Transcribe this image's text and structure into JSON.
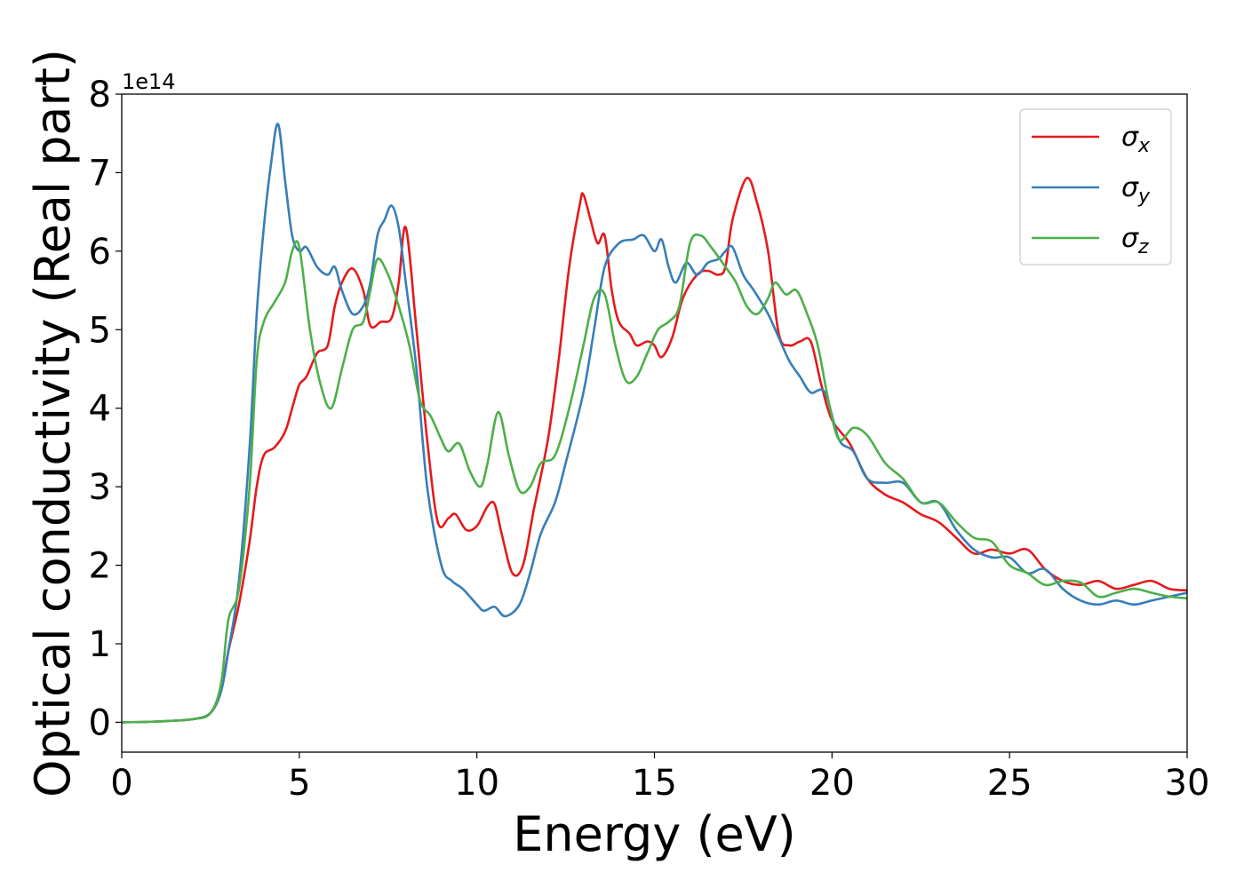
{
  "chart_data": {
    "type": "line",
    "xlabel": "Energy (eV)",
    "ylabel": "Optical conductivity (Real part)",
    "y_offset_label": "1e14",
    "xlim": [
      0,
      30
    ],
    "ylim": [
      -0.38,
      8.0
    ],
    "x_ticks": [
      0,
      5,
      10,
      15,
      20,
      25,
      30
    ],
    "y_ticks": [
      0,
      1,
      2,
      3,
      4,
      5,
      6,
      7,
      8
    ],
    "grid": false,
    "legend_position": "top-right",
    "series": [
      {
        "name": "σ",
        "subscript": "x",
        "color": "#e41a1c",
        "points": [
          [
            0,
            0
          ],
          [
            1,
            0.01
          ],
          [
            2,
            0.04
          ],
          [
            2.5,
            0.12
          ],
          [
            2.8,
            0.4
          ],
          [
            3.0,
            0.9
          ],
          [
            3.3,
            1.5
          ],
          [
            3.6,
            2.3
          ],
          [
            3.8,
            3.0
          ],
          [
            4.0,
            3.4
          ],
          [
            4.3,
            3.5
          ],
          [
            4.6,
            3.7
          ],
          [
            4.8,
            4.0
          ],
          [
            5.0,
            4.3
          ],
          [
            5.2,
            4.4
          ],
          [
            5.5,
            4.7
          ],
          [
            5.8,
            4.8
          ],
          [
            6.0,
            5.3
          ],
          [
            6.2,
            5.6
          ],
          [
            6.5,
            5.78
          ],
          [
            6.8,
            5.5
          ],
          [
            7.0,
            5.05
          ],
          [
            7.3,
            5.1
          ],
          [
            7.6,
            5.15
          ],
          [
            7.8,
            5.6
          ],
          [
            8.0,
            6.3
          ],
          [
            8.3,
            5.0
          ],
          [
            8.6,
            3.6
          ],
          [
            8.9,
            2.55
          ],
          [
            9.2,
            2.6
          ],
          [
            9.4,
            2.65
          ],
          [
            9.7,
            2.45
          ],
          [
            10.0,
            2.5
          ],
          [
            10.3,
            2.75
          ],
          [
            10.5,
            2.78
          ],
          [
            10.7,
            2.4
          ],
          [
            11.0,
            1.9
          ],
          [
            11.3,
            2.0
          ],
          [
            11.6,
            2.7
          ],
          [
            12.0,
            3.6
          ],
          [
            12.3,
            4.6
          ],
          [
            12.6,
            5.8
          ],
          [
            12.9,
            6.6
          ],
          [
            13.0,
            6.72
          ],
          [
            13.2,
            6.4
          ],
          [
            13.4,
            6.1
          ],
          [
            13.6,
            6.2
          ],
          [
            13.8,
            5.5
          ],
          [
            14.0,
            5.1
          ],
          [
            14.3,
            4.95
          ],
          [
            14.5,
            4.8
          ],
          [
            14.8,
            4.85
          ],
          [
            15.0,
            4.8
          ],
          [
            15.2,
            4.65
          ],
          [
            15.5,
            4.9
          ],
          [
            15.8,
            5.4
          ],
          [
            16.2,
            5.7
          ],
          [
            16.5,
            5.75
          ],
          [
            16.8,
            5.7
          ],
          [
            17.0,
            5.8
          ],
          [
            17.2,
            6.4
          ],
          [
            17.6,
            6.93
          ],
          [
            17.9,
            6.6
          ],
          [
            18.2,
            6.0
          ],
          [
            18.5,
            4.95
          ],
          [
            18.8,
            4.8
          ],
          [
            19.1,
            4.85
          ],
          [
            19.4,
            4.85
          ],
          [
            19.7,
            4.3
          ],
          [
            20.0,
            3.85
          ],
          [
            20.5,
            3.55
          ],
          [
            21.0,
            3.1
          ],
          [
            21.5,
            2.9
          ],
          [
            22.0,
            2.8
          ],
          [
            22.5,
            2.65
          ],
          [
            23.0,
            2.55
          ],
          [
            23.5,
            2.35
          ],
          [
            24.0,
            2.15
          ],
          [
            24.5,
            2.2
          ],
          [
            25.0,
            2.15
          ],
          [
            25.5,
            2.2
          ],
          [
            26.0,
            1.95
          ],
          [
            26.5,
            1.8
          ],
          [
            27.0,
            1.75
          ],
          [
            27.5,
            1.8
          ],
          [
            28.0,
            1.7
          ],
          [
            28.5,
            1.75
          ],
          [
            29.0,
            1.8
          ],
          [
            29.5,
            1.7
          ],
          [
            30.0,
            1.68
          ]
        ]
      },
      {
        "name": "σ",
        "subscript": "y",
        "color": "#377eb8",
        "points": [
          [
            0,
            0
          ],
          [
            1,
            0.01
          ],
          [
            2,
            0.04
          ],
          [
            2.5,
            0.12
          ],
          [
            2.8,
            0.4
          ],
          [
            3.0,
            0.9
          ],
          [
            3.3,
            1.8
          ],
          [
            3.6,
            3.5
          ],
          [
            3.8,
            5.2
          ],
          [
            4.0,
            6.3
          ],
          [
            4.2,
            7.1
          ],
          [
            4.4,
            7.62
          ],
          [
            4.6,
            6.9
          ],
          [
            4.8,
            6.2
          ],
          [
            5.0,
            6.0
          ],
          [
            5.2,
            6.05
          ],
          [
            5.5,
            5.8
          ],
          [
            5.8,
            5.7
          ],
          [
            6.0,
            5.8
          ],
          [
            6.2,
            5.5
          ],
          [
            6.5,
            5.2
          ],
          [
            6.8,
            5.3
          ],
          [
            7.0,
            5.6
          ],
          [
            7.2,
            6.2
          ],
          [
            7.4,
            6.4
          ],
          [
            7.6,
            6.58
          ],
          [
            7.8,
            6.3
          ],
          [
            8.0,
            5.6
          ],
          [
            8.3,
            4.5
          ],
          [
            8.6,
            3.0
          ],
          [
            9.0,
            2.0
          ],
          [
            9.3,
            1.8
          ],
          [
            9.6,
            1.7
          ],
          [
            10.0,
            1.5
          ],
          [
            10.2,
            1.42
          ],
          [
            10.5,
            1.47
          ],
          [
            10.8,
            1.35
          ],
          [
            11.2,
            1.5
          ],
          [
            11.5,
            1.9
          ],
          [
            11.8,
            2.4
          ],
          [
            12.2,
            2.8
          ],
          [
            12.5,
            3.3
          ],
          [
            13.0,
            4.2
          ],
          [
            13.3,
            5.0
          ],
          [
            13.6,
            5.8
          ],
          [
            14.0,
            6.1
          ],
          [
            14.4,
            6.15
          ],
          [
            14.7,
            6.2
          ],
          [
            15.0,
            6.0
          ],
          [
            15.2,
            6.15
          ],
          [
            15.4,
            5.8
          ],
          [
            15.6,
            5.6
          ],
          [
            15.9,
            5.85
          ],
          [
            16.2,
            5.7
          ],
          [
            16.5,
            5.85
          ],
          [
            16.8,
            5.9
          ],
          [
            17.0,
            6.0
          ],
          [
            17.2,
            6.05
          ],
          [
            17.5,
            5.7
          ],
          [
            17.8,
            5.5
          ],
          [
            18.2,
            5.2
          ],
          [
            18.5,
            4.9
          ],
          [
            18.8,
            4.6
          ],
          [
            19.1,
            4.4
          ],
          [
            19.4,
            4.2
          ],
          [
            19.8,
            4.2
          ],
          [
            20.2,
            3.6
          ],
          [
            20.6,
            3.45
          ],
          [
            21.0,
            3.1
          ],
          [
            21.5,
            3.05
          ],
          [
            22.0,
            3.05
          ],
          [
            22.5,
            2.8
          ],
          [
            23.0,
            2.8
          ],
          [
            23.5,
            2.45
          ],
          [
            24.0,
            2.2
          ],
          [
            24.5,
            2.1
          ],
          [
            25.0,
            2.1
          ],
          [
            25.5,
            1.9
          ],
          [
            26.0,
            1.95
          ],
          [
            26.5,
            1.7
          ],
          [
            27.0,
            1.55
          ],
          [
            27.5,
            1.5
          ],
          [
            28.0,
            1.55
          ],
          [
            28.5,
            1.5
          ],
          [
            29.0,
            1.55
          ],
          [
            29.5,
            1.6
          ],
          [
            30.0,
            1.65
          ]
        ]
      },
      {
        "name": "σ",
        "subscript": "z",
        "color": "#4daf4a",
        "points": [
          [
            0,
            0
          ],
          [
            1,
            0.01
          ],
          [
            2,
            0.04
          ],
          [
            2.5,
            0.12
          ],
          [
            2.8,
            0.5
          ],
          [
            3.0,
            1.3
          ],
          [
            3.3,
            1.7
          ],
          [
            3.6,
            3.0
          ],
          [
            3.8,
            4.6
          ],
          [
            4.0,
            5.1
          ],
          [
            4.3,
            5.35
          ],
          [
            4.6,
            5.6
          ],
          [
            4.8,
            6.0
          ],
          [
            5.0,
            6.05
          ],
          [
            5.3,
            5.0
          ],
          [
            5.6,
            4.3
          ],
          [
            5.9,
            4.0
          ],
          [
            6.2,
            4.5
          ],
          [
            6.5,
            5.0
          ],
          [
            6.8,
            5.1
          ],
          [
            7.0,
            5.5
          ],
          [
            7.2,
            5.9
          ],
          [
            7.5,
            5.7
          ],
          [
            7.8,
            5.3
          ],
          [
            8.1,
            4.8
          ],
          [
            8.4,
            4.1
          ],
          [
            8.7,
            3.9
          ],
          [
            9.0,
            3.6
          ],
          [
            9.2,
            3.45
          ],
          [
            9.5,
            3.55
          ],
          [
            9.8,
            3.2
          ],
          [
            10.1,
            3.0
          ],
          [
            10.3,
            3.3
          ],
          [
            10.6,
            3.95
          ],
          [
            10.9,
            3.4
          ],
          [
            11.2,
            2.95
          ],
          [
            11.5,
            3.0
          ],
          [
            11.8,
            3.3
          ],
          [
            12.2,
            3.4
          ],
          [
            12.6,
            4.0
          ],
          [
            13.0,
            4.8
          ],
          [
            13.3,
            5.4
          ],
          [
            13.6,
            5.45
          ],
          [
            13.9,
            4.8
          ],
          [
            14.2,
            4.35
          ],
          [
            14.5,
            4.4
          ],
          [
            14.8,
            4.7
          ],
          [
            15.1,
            5.0
          ],
          [
            15.4,
            5.1
          ],
          [
            15.7,
            5.3
          ],
          [
            16.0,
            6.1
          ],
          [
            16.3,
            6.2
          ],
          [
            16.6,
            6.05
          ],
          [
            17.0,
            5.8
          ],
          [
            17.3,
            5.6
          ],
          [
            17.6,
            5.3
          ],
          [
            17.9,
            5.2
          ],
          [
            18.2,
            5.4
          ],
          [
            18.4,
            5.6
          ],
          [
            18.7,
            5.45
          ],
          [
            19.0,
            5.5
          ],
          [
            19.3,
            5.2
          ],
          [
            19.6,
            4.8
          ],
          [
            19.9,
            4.1
          ],
          [
            20.2,
            3.6
          ],
          [
            20.6,
            3.75
          ],
          [
            21.0,
            3.65
          ],
          [
            21.5,
            3.3
          ],
          [
            22.0,
            3.1
          ],
          [
            22.5,
            2.8
          ],
          [
            23.0,
            2.8
          ],
          [
            23.5,
            2.55
          ],
          [
            24.0,
            2.35
          ],
          [
            24.5,
            2.3
          ],
          [
            25.0,
            2.0
          ],
          [
            25.5,
            1.9
          ],
          [
            26.0,
            1.75
          ],
          [
            26.5,
            1.8
          ],
          [
            27.0,
            1.78
          ],
          [
            27.5,
            1.6
          ],
          [
            28.0,
            1.65
          ],
          [
            28.5,
            1.7
          ],
          [
            29.0,
            1.65
          ],
          [
            29.5,
            1.6
          ],
          [
            30.0,
            1.58
          ]
        ]
      }
    ]
  }
}
